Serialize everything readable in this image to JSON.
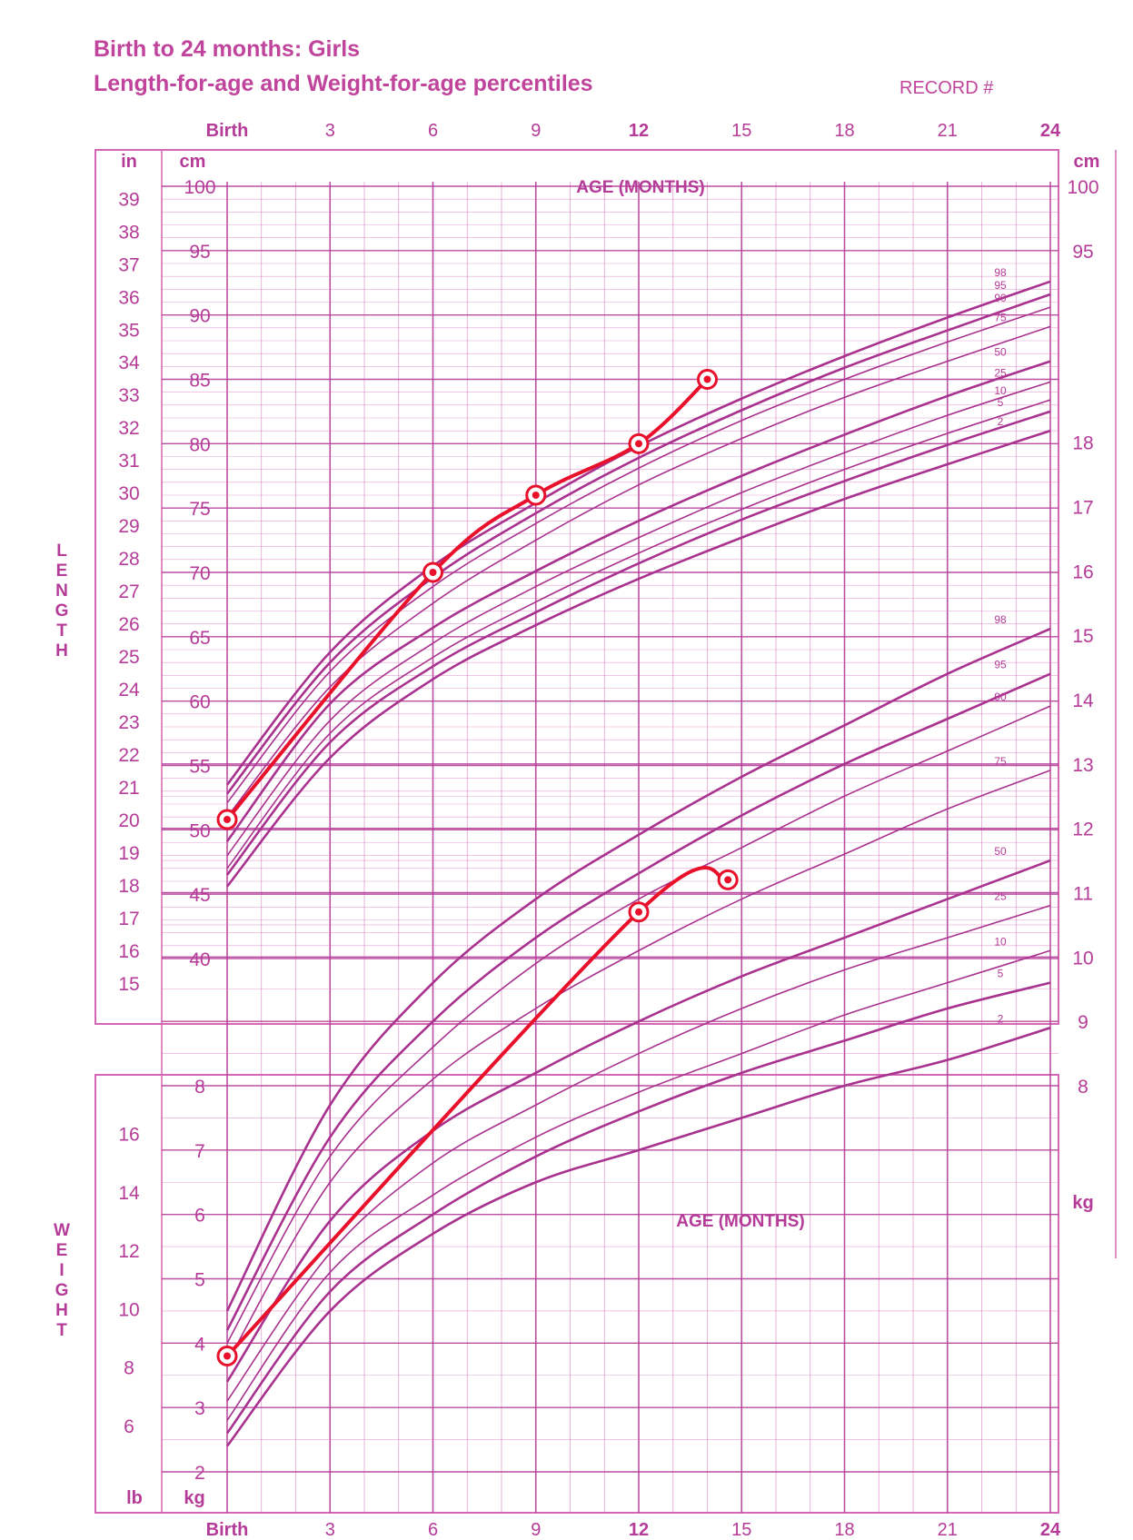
{
  "header": {
    "title_line1": "Birth to 24 months: Girls",
    "title_line2": "Length-for-age and Weight-for-age percentiles",
    "record_label": "RECORD #"
  },
  "chart_data": {
    "type": "line",
    "x_axis": {
      "label": "AGE (MONTHS)",
      "ticks": [
        0,
        3,
        6,
        9,
        12,
        15,
        18,
        21,
        24
      ],
      "tick_labels": [
        "Birth",
        "3",
        "6",
        "9",
        "12",
        "15",
        "18",
        "21",
        "24"
      ],
      "range": [
        0,
        24
      ]
    },
    "length_axis": {
      "label": "LENGTH",
      "units": [
        "in",
        "cm"
      ],
      "cm_range": [
        45,
        100
      ],
      "cm_ticks_left": [
        40,
        45,
        50,
        55,
        60,
        65,
        70,
        75,
        80,
        85,
        90,
        95,
        100
      ],
      "cm_ticks_right": [
        95,
        100
      ],
      "in_ticks": [
        15,
        16,
        17,
        18,
        19,
        20,
        21,
        22,
        23,
        24,
        25,
        26,
        27,
        28,
        29,
        30,
        31,
        32,
        33,
        34,
        35,
        36,
        37,
        38,
        39
      ]
    },
    "weight_axis": {
      "label": "WEIGHT",
      "units": [
        "lb",
        "kg"
      ],
      "kg_ticks_left": [
        2,
        3,
        4,
        5,
        6,
        7,
        8
      ],
      "kg_ticks_right": [
        8,
        9,
        10,
        11,
        12,
        13,
        14,
        15,
        16,
        17,
        18
      ],
      "lb_ticks": [
        6,
        8,
        10,
        12,
        14,
        16
      ]
    },
    "percentile_labels": [
      "98",
      "95",
      "90",
      "75",
      "50",
      "25",
      "10",
      "5",
      "2"
    ],
    "length_percentiles": [
      {
        "name": "98",
        "x": [
          0,
          3,
          6,
          9,
          12,
          15,
          18,
          21,
          24
        ],
        "values": [
          53.5,
          63.8,
          70.5,
          75.4,
          79.8,
          83.5,
          86.8,
          89.8,
          92.6
        ]
      },
      {
        "name": "95",
        "x": [
          0,
          3,
          6,
          9,
          12,
          15,
          18,
          21,
          24
        ],
        "values": [
          52.8,
          63.0,
          69.6,
          74.6,
          78.9,
          82.6,
          85.9,
          88.8,
          91.6
        ]
      },
      {
        "name": "90",
        "x": [
          0,
          3,
          6,
          9,
          12,
          15,
          18,
          21,
          24
        ],
        "values": [
          52.1,
          62.3,
          68.9,
          73.8,
          78.1,
          81.8,
          85.0,
          87.9,
          90.6
        ]
      },
      {
        "name": "75",
        "x": [
          0,
          3,
          6,
          9,
          12,
          15,
          18,
          21,
          24
        ],
        "values": [
          51.0,
          61.1,
          67.6,
          72.5,
          76.8,
          80.4,
          83.6,
          86.4,
          89.1
        ]
      },
      {
        "name": "50",
        "x": [
          0,
          3,
          6,
          9,
          12,
          15,
          18,
          21,
          24
        ],
        "values": [
          49.1,
          59.8,
          65.7,
          70.1,
          74.0,
          77.5,
          80.7,
          83.7,
          86.4
        ]
      },
      {
        "name": "25",
        "x": [
          0,
          3,
          6,
          9,
          12,
          15,
          18,
          21,
          24
        ],
        "values": [
          48.0,
          58.5,
          64.5,
          68.9,
          72.7,
          76.2,
          79.3,
          82.2,
          84.8
        ]
      },
      {
        "name": "10",
        "x": [
          0,
          3,
          6,
          9,
          12,
          15,
          18,
          21,
          24
        ],
        "values": [
          47.0,
          57.5,
          63.4,
          67.7,
          71.5,
          74.9,
          78.0,
          80.8,
          83.4
        ]
      },
      {
        "name": "5",
        "x": [
          0,
          3,
          6,
          9,
          12,
          15,
          18,
          21,
          24
        ],
        "values": [
          46.5,
          56.8,
          62.7,
          66.9,
          70.7,
          74.1,
          77.1,
          79.9,
          82.5
        ]
      },
      {
        "name": "2",
        "x": [
          0,
          3,
          6,
          9,
          12,
          15,
          18,
          21,
          24
        ],
        "values": [
          45.6,
          55.6,
          61.7,
          65.9,
          69.5,
          72.7,
          75.7,
          78.4,
          81.0
        ]
      }
    ],
    "weight_percentiles": [
      {
        "name": "98",
        "x": [
          0,
          3,
          6,
          9,
          12,
          15,
          18,
          21,
          24
        ],
        "values": [
          4.5,
          7.7,
          9.6,
          10.9,
          11.9,
          12.8,
          13.6,
          14.4,
          15.1
        ]
      },
      {
        "name": "95",
        "x": [
          0,
          3,
          6,
          9,
          12,
          15,
          18,
          21,
          24
        ],
        "values": [
          4.2,
          7.2,
          9.0,
          10.3,
          11.3,
          12.2,
          13.0,
          13.7,
          14.4
        ]
      },
      {
        "name": "90",
        "x": [
          0,
          3,
          6,
          9,
          12,
          15,
          18,
          21,
          24
        ],
        "values": [
          4.0,
          6.9,
          8.6,
          9.9,
          10.9,
          11.7,
          12.5,
          13.2,
          13.9
        ]
      },
      {
        "name": "75",
        "x": [
          0,
          3,
          6,
          9,
          12,
          15,
          18,
          21,
          24
        ],
        "values": [
          3.7,
          6.5,
          8.1,
          9.2,
          10.1,
          10.9,
          11.6,
          12.3,
          12.9
        ]
      },
      {
        "name": "50",
        "x": [
          0,
          3,
          6,
          9,
          12,
          15,
          18,
          21,
          24
        ],
        "values": [
          3.4,
          5.9,
          7.3,
          8.2,
          9.0,
          9.7,
          10.3,
          10.9,
          11.5
        ]
      },
      {
        "name": "25",
        "x": [
          0,
          3,
          6,
          9,
          12,
          15,
          18,
          21,
          24
        ],
        "values": [
          3.1,
          5.4,
          6.8,
          7.7,
          8.5,
          9.2,
          9.8,
          10.3,
          10.8
        ]
      },
      {
        "name": "10",
        "x": [
          0,
          3,
          6,
          9,
          12,
          15,
          18,
          21,
          24
        ],
        "values": [
          2.8,
          5.1,
          6.3,
          7.2,
          7.9,
          8.5,
          9.1,
          9.6,
          10.1
        ]
      },
      {
        "name": "5",
        "x": [
          0,
          3,
          6,
          9,
          12,
          15,
          18,
          21,
          24
        ],
        "values": [
          2.6,
          4.8,
          6.0,
          6.9,
          7.6,
          8.2,
          8.7,
          9.2,
          9.6
        ]
      },
      {
        "name": "2",
        "x": [
          0,
          3,
          6,
          9,
          12,
          15,
          18,
          21,
          24
        ],
        "values": [
          2.4,
          4.5,
          5.7,
          6.5,
          7.0,
          7.5,
          8.0,
          8.4,
          8.9
        ]
      }
    ],
    "patient_length": {
      "x": [
        0,
        6,
        9,
        12,
        14
      ],
      "values": [
        50.8,
        70,
        76,
        80,
        85
      ]
    },
    "patient_weight": {
      "x": [
        0,
        12,
        14.6
      ],
      "values": [
        3.8,
        10.7,
        11.2
      ]
    },
    "colors": {
      "grid": "#d565b5",
      "grid_major": "#b53b98",
      "curve": "#a8328e",
      "patient": "#e8102b",
      "title": "#c0449c"
    }
  }
}
